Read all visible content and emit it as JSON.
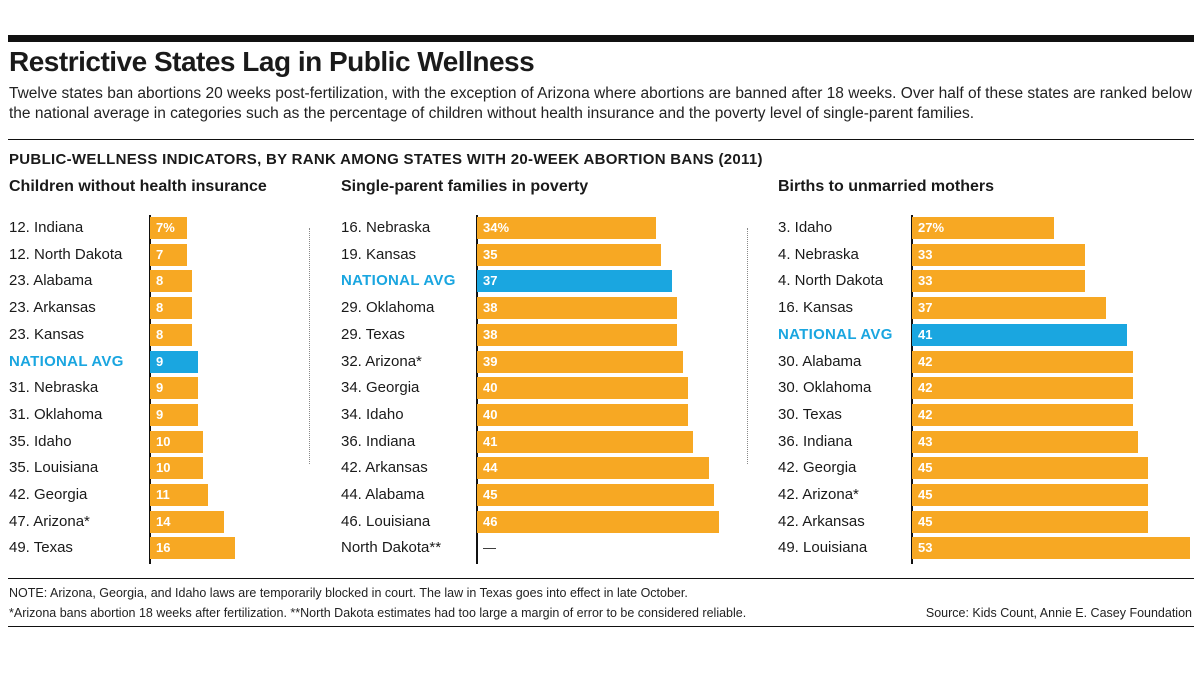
{
  "title": "Restrictive States Lag in Public Wellness",
  "subtitle": "Twelve states ban abortions 20 weeks post-fertilization, with the exception of Arizona where abortions are banned after 18 weeks. Over half of these states are ranked below the national average in categories such as the percentage of children without health insurance and the poverty level of single-parent families.",
  "section_title": "PUBLIC-WELLNESS INDICATORS, BY RANK AMONG STATES WITH 20-WEEK ABORTION BANS (2011)",
  "notes": {
    "line1": "NOTE: Arizona, Georgia, and Idaho laws are temporarily blocked in court. The law in Texas goes into effect in late October.",
    "line2": "*Arizona bans abortion 18 weeks after fertilization. **North Dakota estimates had too large a margin of error to be considered reliable.",
    "source": "Source:  Kids Count, Annie E. Casey Foundation"
  },
  "colors": {
    "bar": "#f7a823",
    "national": "#1aa6e0",
    "axis": "#111111"
  },
  "chart_data": [
    {
      "type": "bar",
      "orientation": "horizontal",
      "title": "Children without health insurance",
      "unit": "%",
      "rows": [
        {
          "label": "12. Indiana",
          "value": 7,
          "display": "7%"
        },
        {
          "label": "12. North Dakota",
          "value": 7,
          "display": "7"
        },
        {
          "label": "23. Alabama",
          "value": 8,
          "display": "8"
        },
        {
          "label": "23. Arkansas",
          "value": 8,
          "display": "8"
        },
        {
          "label": "23. Kansas",
          "value": 8,
          "display": "8"
        },
        {
          "label": "NATIONAL AVG",
          "value": 9,
          "display": "9",
          "national": true
        },
        {
          "label": "31. Nebraska",
          "value": 9,
          "display": "9"
        },
        {
          "label": "31. Oklahoma",
          "value": 9,
          "display": "9"
        },
        {
          "label": "35. Idaho",
          "value": 10,
          "display": "10"
        },
        {
          "label": "35. Louisiana",
          "value": 10,
          "display": "10"
        },
        {
          "label": "42. Georgia",
          "value": 11,
          "display": "11"
        },
        {
          "label": "47. Arizona*",
          "value": 14,
          "display": "14"
        },
        {
          "label": "49. Texas",
          "value": 16,
          "display": "16"
        }
      ]
    },
    {
      "type": "bar",
      "orientation": "horizontal",
      "title": "Single-parent families in poverty",
      "unit": "%",
      "rows": [
        {
          "label": "16. Nebraska",
          "value": 34,
          "display": "34%"
        },
        {
          "label": "19. Kansas",
          "value": 35,
          "display": "35"
        },
        {
          "label": "NATIONAL AVG",
          "value": 37,
          "display": "37",
          "national": true
        },
        {
          "label": "29. Oklahoma",
          "value": 38,
          "display": "38"
        },
        {
          "label": "29. Texas",
          "value": 38,
          "display": "38"
        },
        {
          "label": "32. Arizona*",
          "value": 39,
          "display": "39"
        },
        {
          "label": "34. Georgia",
          "value": 40,
          "display": "40"
        },
        {
          "label": "34. Idaho",
          "value": 40,
          "display": "40"
        },
        {
          "label": "36. Indiana",
          "value": 41,
          "display": "41"
        },
        {
          "label": "42. Arkansas",
          "value": 44,
          "display": "44"
        },
        {
          "label": "44. Alabama",
          "value": 45,
          "display": "45"
        },
        {
          "label": "46. Louisiana",
          "value": 46,
          "display": "46"
        },
        {
          "label": "North Dakota**",
          "value": null,
          "display": "—"
        }
      ]
    },
    {
      "type": "bar",
      "orientation": "horizontal",
      "title": "Births to unmarried mothers",
      "unit": "%",
      "rows": [
        {
          "label": "3. Idaho",
          "value": 27,
          "display": "27%"
        },
        {
          "label": "4. Nebraska",
          "value": 33,
          "display": "33"
        },
        {
          "label": "4. North Dakota",
          "value": 33,
          "display": "33"
        },
        {
          "label": "16. Kansas",
          "value": 37,
          "display": "37"
        },
        {
          "label": "NATIONAL AVG",
          "value": 41,
          "display": "41",
          "national": true
        },
        {
          "label": "30. Alabama",
          "value": 42,
          "display": "42"
        },
        {
          "label": "30. Oklahoma",
          "value": 42,
          "display": "42"
        },
        {
          "label": "30. Texas",
          "value": 42,
          "display": "42"
        },
        {
          "label": "36. Indiana",
          "value": 43,
          "display": "43"
        },
        {
          "label": "42. Georgia",
          "value": 45,
          "display": "45"
        },
        {
          "label": "42. Arizona*",
          "value": 45,
          "display": "45"
        },
        {
          "label": "42. Arkansas",
          "value": 45,
          "display": "45"
        },
        {
          "label": "49. Louisiana",
          "value": 53,
          "display": "53"
        }
      ]
    }
  ]
}
